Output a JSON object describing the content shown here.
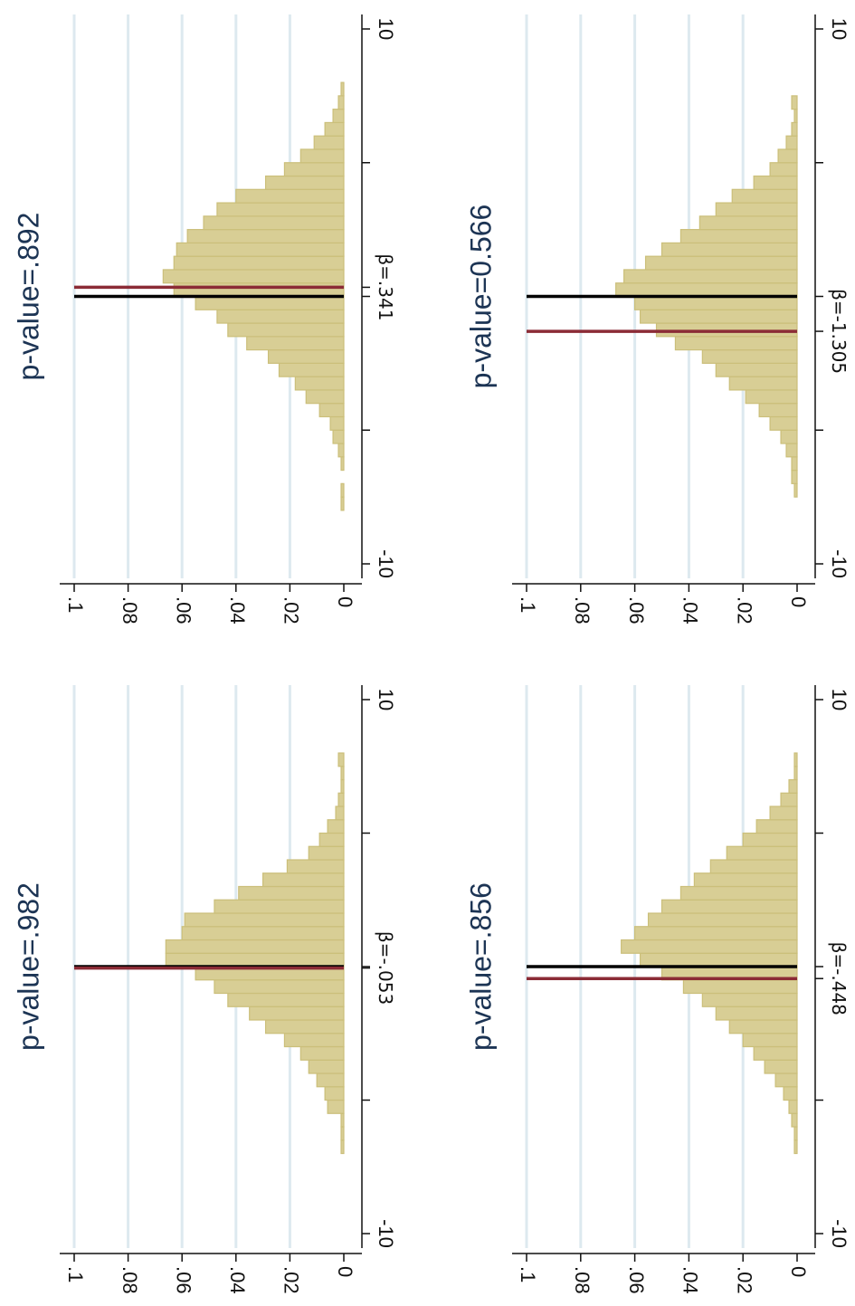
{
  "colors": {
    "bar_fill": "#d8ce95",
    "bar_stripe": "#cbbf7a",
    "grid": "#dde9ef",
    "axis": "#111111",
    "observed_line": "#000000",
    "estimate_line": "#8b2b36",
    "title": "#1c3454"
  },
  "chart_data": [
    {
      "type": "bar",
      "position": "top-left",
      "title": "p-value=.982",
      "beta_label": "β=-.053",
      "beta_value": -0.053,
      "xlim": [
        -10,
        10
      ],
      "ylim": [
        0,
        0.1
      ],
      "x_ticks": [
        -10,
        -5,
        0,
        5,
        10
      ],
      "x_tick_labels": [
        "-10",
        "",
        "",
        "",
        "10"
      ],
      "y_ticks": [
        0,
        0.02,
        0.04,
        0.06,
        0.08,
        0.1
      ],
      "y_tick_labels": [
        "0",
        ".02",
        ".04",
        ".06",
        ".08",
        ".1"
      ],
      "grid": true,
      "vertical_lines": [
        {
          "x": 0,
          "color": "observed_line"
        },
        {
          "x": -0.053,
          "color": "estimate_line"
        }
      ],
      "bins_x": [
        -7,
        -6.5,
        -6,
        -5.5,
        -5,
        -4.5,
        -4,
        -3.5,
        -3,
        -2.5,
        -2,
        -1.5,
        -1,
        -0.5,
        0,
        0.5,
        1,
        1.5,
        2,
        2.5,
        3,
        3.5,
        4,
        4.5,
        5,
        5.5,
        6,
        6.5,
        7,
        7.5
      ],
      "values": [
        0.001,
        0.001,
        0.001,
        0.006,
        0.007,
        0.01,
        0.013,
        0.016,
        0.022,
        0.029,
        0.035,
        0.043,
        0.048,
        0.055,
        0.066,
        0.066,
        0.06,
        0.059,
        0.048,
        0.039,
        0.03,
        0.021,
        0.013,
        0.009,
        0.006,
        0.003,
        0.002,
        0.001,
        0.001,
        0.002
      ]
    },
    {
      "type": "bar",
      "position": "top-right",
      "title": "p-value=.892",
      "beta_label": "β=.341",
      "beta_value": 0.341,
      "xlim": [
        -10,
        10
      ],
      "ylim": [
        0,
        0.1
      ],
      "x_ticks": [
        -10,
        -5,
        0,
        5,
        10
      ],
      "x_tick_labels": [
        "-10",
        "",
        "",
        "",
        "10"
      ],
      "y_ticks": [
        0,
        0.02,
        0.04,
        0.06,
        0.08,
        0.1
      ],
      "y_tick_labels": [
        "0",
        ".02",
        ".04",
        ".06",
        ".08",
        ".1"
      ],
      "grid": true,
      "vertical_lines": [
        {
          "x": 0,
          "color": "observed_line"
        },
        {
          "x": 0.341,
          "color": "estimate_line"
        }
      ],
      "bins_x": [
        -8,
        -7.5,
        -7,
        -6.5,
        -6,
        -5.5,
        -5,
        -4.5,
        -4,
        -3.5,
        -3,
        -2.5,
        -2,
        -1.5,
        -1,
        -0.5,
        0,
        0.5,
        1,
        1.5,
        2,
        2.5,
        3,
        3.5,
        4,
        4.5,
        5,
        5.5,
        6,
        6.5,
        7,
        7.5
      ],
      "values": [
        0.001,
        0.001,
        0,
        0.001,
        0.002,
        0.004,
        0.005,
        0.009,
        0.014,
        0.018,
        0.024,
        0.028,
        0.036,
        0.043,
        0.047,
        0.055,
        0.063,
        0.067,
        0.063,
        0.062,
        0.058,
        0.052,
        0.047,
        0.04,
        0.029,
        0.022,
        0.016,
        0.011,
        0.007,
        0.004,
        0.002,
        0.001
      ]
    },
    {
      "type": "bar",
      "position": "bottom-left",
      "title": "p-value=.856",
      "beta_label": "β=-.448",
      "beta_value": -0.448,
      "xlim": [
        -10,
        10
      ],
      "ylim": [
        0,
        0.1
      ],
      "x_ticks": [
        -10,
        -5,
        0,
        5,
        10
      ],
      "x_tick_labels": [
        "-10",
        "",
        "",
        "",
        "10"
      ],
      "y_ticks": [
        0,
        0.02,
        0.04,
        0.06,
        0.08,
        0.1
      ],
      "y_tick_labels": [
        "0",
        ".02",
        ".04",
        ".06",
        ".08",
        ".1"
      ],
      "grid": true,
      "vertical_lines": [
        {
          "x": 0,
          "color": "observed_line"
        },
        {
          "x": -0.448,
          "color": "estimate_line"
        }
      ],
      "bins_x": [
        -7,
        -6.5,
        -6,
        -5.5,
        -5,
        -4.5,
        -4,
        -3.5,
        -3,
        -2.5,
        -2,
        -1.5,
        -1,
        -0.5,
        0,
        0.5,
        1,
        1.5,
        2,
        2.5,
        3,
        3.5,
        4,
        4.5,
        5,
        5.5,
        6,
        6.5,
        7,
        7.5
      ],
      "values": [
        0.001,
        0.001,
        0.002,
        0.003,
        0.005,
        0.008,
        0.012,
        0.016,
        0.02,
        0.025,
        0.03,
        0.035,
        0.042,
        0.05,
        0.058,
        0.065,
        0.06,
        0.055,
        0.05,
        0.043,
        0.038,
        0.032,
        0.026,
        0.02,
        0.015,
        0.01,
        0.006,
        0.003,
        0.001,
        0.001
      ]
    },
    {
      "type": "bar",
      "position": "bottom-right",
      "title": "p-value=0.566",
      "beta_label": "β=-1.305",
      "beta_value": -1.305,
      "xlim": [
        -10,
        10
      ],
      "ylim": [
        0,
        0.1
      ],
      "x_ticks": [
        -10,
        -5,
        0,
        5,
        10
      ],
      "x_tick_labels": [
        "-10",
        "",
        "",
        "",
        "10"
      ],
      "y_ticks": [
        0,
        0.02,
        0.04,
        0.06,
        0.08,
        0.1
      ],
      "y_tick_labels": [
        "0",
        ".02",
        ".04",
        ".06",
        ".08",
        ".1"
      ],
      "grid": true,
      "vertical_lines": [
        {
          "x": 0,
          "color": "observed_line"
        },
        {
          "x": -1.305,
          "color": "estimate_line"
        }
      ],
      "bins_x": [
        -7.5,
        -7,
        -6.5,
        -6,
        -5.5,
        -5,
        -4.5,
        -4,
        -3.5,
        -3,
        -2.5,
        -2,
        -1.5,
        -1,
        -0.5,
        0,
        0.5,
        1,
        1.5,
        2,
        2.5,
        3,
        3.5,
        4,
        4.5,
        5,
        5.5,
        6,
        6.5,
        7
      ],
      "values": [
        0.001,
        0.002,
        0.002,
        0.004,
        0.006,
        0.01,
        0.014,
        0.019,
        0.025,
        0.03,
        0.035,
        0.045,
        0.052,
        0.058,
        0.06,
        0.067,
        0.064,
        0.056,
        0.05,
        0.043,
        0.036,
        0.03,
        0.024,
        0.016,
        0.01,
        0.007,
        0.004,
        0.002,
        0.001,
        0.002
      ]
    }
  ]
}
